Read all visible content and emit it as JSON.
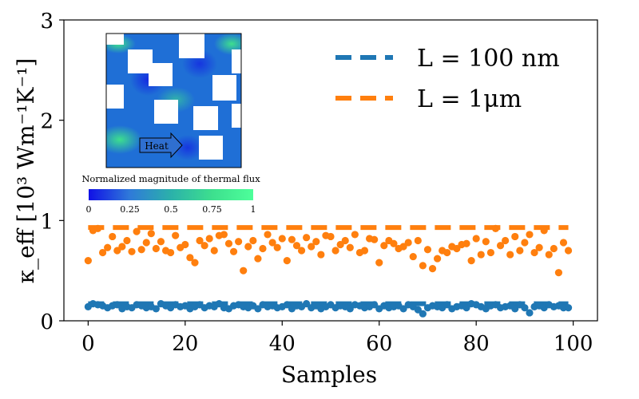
{
  "chart_data": {
    "type": "scatter",
    "xlabel": "Samples",
    "ylabel": "κ_eff [10³ Wm⁻¹K⁻¹]",
    "xlim": [
      -5,
      105
    ],
    "ylim": [
      0,
      3
    ],
    "x_ticks": [
      0,
      20,
      40,
      60,
      80,
      100
    ],
    "y_ticks": [
      0,
      1,
      2,
      3
    ],
    "grid": false,
    "legend_position": "top-right",
    "series": [
      {
        "name": "L = 100 nm",
        "color": "#1f77b4",
        "reference_line": 0.17,
        "values": [
          0.14,
          0.17,
          0.16,
          0.15,
          0.13,
          0.15,
          0.16,
          0.12,
          0.14,
          0.13,
          0.16,
          0.15,
          0.13,
          0.14,
          0.12,
          0.17,
          0.15,
          0.13,
          0.16,
          0.14,
          0.15,
          0.12,
          0.14,
          0.16,
          0.13,
          0.15,
          0.14,
          0.17,
          0.13,
          0.12,
          0.15,
          0.16,
          0.14,
          0.13,
          0.15,
          0.12,
          0.16,
          0.14,
          0.15,
          0.13,
          0.14,
          0.16,
          0.12,
          0.15,
          0.14,
          0.17,
          0.13,
          0.15,
          0.12,
          0.14,
          0.16,
          0.13,
          0.15,
          0.14,
          0.12,
          0.16,
          0.15,
          0.13,
          0.14,
          0.16,
          0.12,
          0.15,
          0.13,
          0.14,
          0.15,
          0.12,
          0.16,
          0.14,
          0.11,
          0.07,
          0.13,
          0.15,
          0.14,
          0.13,
          0.16,
          0.12,
          0.14,
          0.15,
          0.13,
          0.17,
          0.16,
          0.14,
          0.12,
          0.15,
          0.16,
          0.13,
          0.14,
          0.15,
          0.12,
          0.16,
          0.13,
          0.08,
          0.14,
          0.15,
          0.13,
          0.16,
          0.14,
          0.15,
          0.13,
          0.13
        ]
      },
      {
        "name": "L = 1μm",
        "color": "#ff7f0e",
        "reference_line": 0.93,
        "values": [
          0.6,
          0.9,
          0.92,
          0.68,
          0.73,
          0.84,
          0.7,
          0.74,
          0.8,
          0.69,
          0.89,
          0.71,
          0.78,
          0.87,
          0.72,
          0.79,
          0.7,
          0.68,
          0.85,
          0.73,
          0.76,
          0.63,
          0.58,
          0.8,
          0.75,
          0.82,
          0.7,
          0.85,
          0.86,
          0.77,
          0.69,
          0.79,
          0.5,
          0.74,
          0.8,
          0.62,
          0.72,
          0.86,
          0.78,
          0.73,
          0.82,
          0.6,
          0.81,
          0.75,
          0.7,
          0.83,
          0.74,
          0.79,
          0.66,
          0.85,
          0.84,
          0.7,
          0.76,
          0.8,
          0.73,
          0.86,
          0.68,
          0.7,
          0.82,
          0.81,
          0.58,
          0.75,
          0.8,
          0.77,
          0.72,
          0.74,
          0.78,
          0.64,
          0.8,
          0.55,
          0.71,
          0.52,
          0.62,
          0.7,
          0.68,
          0.74,
          0.72,
          0.76,
          0.77,
          0.6,
          0.82,
          0.66,
          0.79,
          0.68,
          0.92,
          0.75,
          0.8,
          0.66,
          0.84,
          0.7,
          0.78,
          0.86,
          0.68,
          0.73,
          0.9,
          0.66,
          0.72,
          0.48,
          0.78,
          0.7
        ]
      }
    ],
    "inset": {
      "arrow_label": "Heat",
      "colorbar_title": "Normalized magnitude of thermal flux",
      "colorbar_ticks": [
        "0",
        "0.25",
        "0.5",
        "0.75",
        "1"
      ],
      "colorbar_colors": [
        "#1010e6",
        "#2f7ad9",
        "#2bb1aa",
        "#3ddf8e",
        "#4dff9a"
      ]
    }
  }
}
